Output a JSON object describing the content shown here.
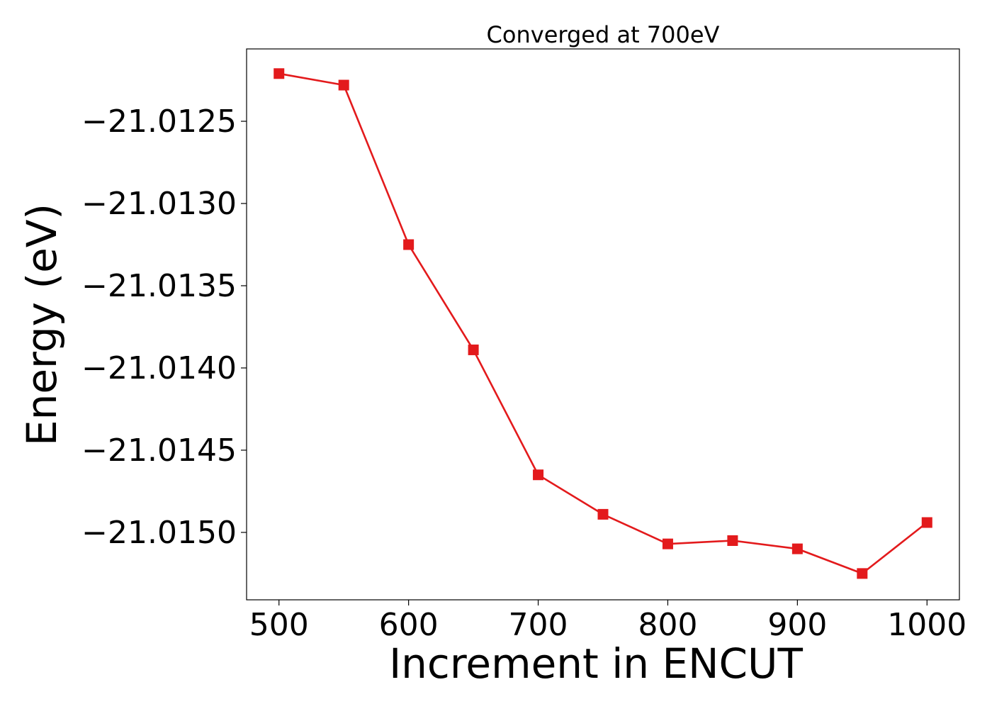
{
  "chart_data": {
    "type": "line",
    "title": "Converged at 700eV",
    "xlabel": "Increment in ENCUT",
    "ylabel": "Energy (eV)",
    "x": [
      500,
      550,
      600,
      650,
      700,
      750,
      800,
      850,
      900,
      950,
      1000
    ],
    "series": [
      {
        "values": [
          -21.01221,
          -21.01228,
          -21.01325,
          -21.01389,
          -21.01465,
          -21.01489,
          -21.01507,
          -21.01505,
          -21.0151,
          -21.01525,
          -21.01494
        ],
        "color": "#e31a1c",
        "marker": "square"
      }
    ],
    "xticks": [
      500,
      600,
      700,
      800,
      900,
      1000
    ],
    "xtick_labels": [
      "500",
      "600",
      "700",
      "800",
      "900",
      "1000"
    ],
    "yticks": [
      -21.0125,
      -21.013,
      -21.0135,
      -21.014,
      -21.0145,
      -21.015
    ],
    "ytick_labels": [
      "−21.0125",
      "−21.0130",
      "−21.0135",
      "−21.0140",
      "−21.0145",
      "−21.0150"
    ],
    "xlim": [
      475,
      1025
    ],
    "ylim": [
      -21.01541,
      -21.01206
    ],
    "grid": false,
    "legend": false
  }
}
